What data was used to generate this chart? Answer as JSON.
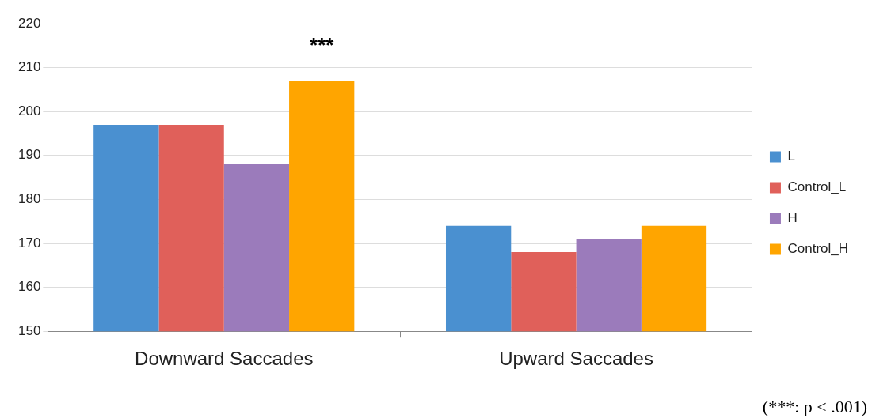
{
  "chart_data": {
    "type": "bar",
    "categories": [
      "Downward Saccades",
      "Upward Saccades"
    ],
    "series": [
      {
        "name": "L",
        "color": "#4a90d0",
        "values": [
          197,
          174
        ]
      },
      {
        "name": "Control_L",
        "color": "#e0605a",
        "values": [
          197,
          168
        ]
      },
      {
        "name": "H",
        "color": "#9b7bbb",
        "values": [
          188,
          171
        ]
      },
      {
        "name": "Control_H",
        "color": "#ffa500",
        "values": [
          207,
          174
        ]
      }
    ],
    "ylim": [
      150,
      220
    ],
    "yticks": [
      150,
      160,
      170,
      180,
      190,
      200,
      210,
      220
    ],
    "grid": "y",
    "legend": "right",
    "annotations": [
      "***",
      "(***: p < .001)"
    ]
  }
}
